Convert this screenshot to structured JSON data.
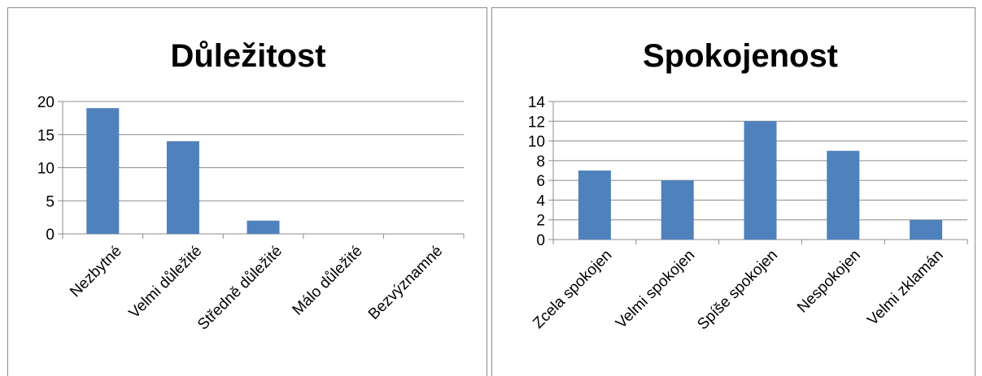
{
  "chart_data": [
    {
      "id": "importance",
      "type": "bar",
      "title": "Důležitost",
      "xlabel": "",
      "ylabel": "",
      "categories": [
        "Nezbytné",
        "Velmi důležité",
        "Středně důležité",
        "Málo důležité",
        "Bezvýznamné"
      ],
      "values": [
        19,
        14,
        2,
        0,
        0
      ],
      "ylim": [
        0,
        20
      ],
      "yticks": [
        0,
        5,
        10,
        15,
        20
      ],
      "grid": true,
      "bar_color": "#4F81BD"
    },
    {
      "id": "satisfaction",
      "type": "bar",
      "title": "Spokojenost",
      "xlabel": "",
      "ylabel": "",
      "categories": [
        "Zcela spokojen",
        "Velmi spokojen",
        "Spíše spokojen",
        "Nespokojen",
        "Velmi zklamán"
      ],
      "values": [
        7,
        6,
        12,
        9,
        2
      ],
      "ylim": [
        0,
        14
      ],
      "yticks": [
        0,
        2,
        4,
        6,
        8,
        10,
        12,
        14
      ],
      "grid": true,
      "bar_color": "#4F81BD"
    }
  ]
}
